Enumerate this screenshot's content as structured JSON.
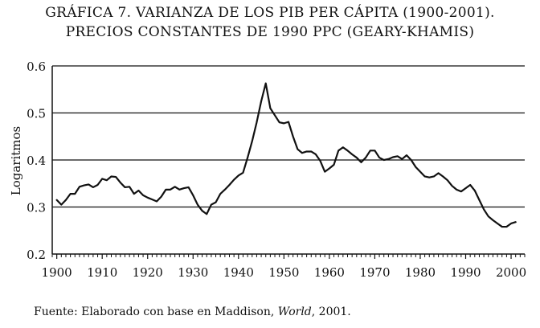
{
  "title_line1": "GRÁFICA 7. VARIANZA DE LOS PIB PER CÁPITA (1900-2001).",
  "title_line2": "PRECIOS CONSTANTES DE 1990 PPC (GEARY-KHAMIS)",
  "source": {
    "prefix": "Fuente: Elaborado con base en Maddison, ",
    "work": "World",
    "suffix": ", 2001."
  },
  "chart_data": {
    "type": "line",
    "title": "",
    "xlabel": "",
    "ylabel": "Logaritmos",
    "xlim": [
      1899,
      2003
    ],
    "ylim": [
      0.2,
      0.6
    ],
    "yticks": [
      "0.2",
      "0.3",
      "0.4",
      "0.5",
      "0.6"
    ],
    "xticks": [
      "1900",
      "1910",
      "1920",
      "1930",
      "1940",
      "1950",
      "1960",
      "1970",
      "1980",
      "1990",
      "2000"
    ],
    "grid": "horizontal",
    "legend": "none",
    "series": [
      {
        "color": "#111111",
        "x": [
          1900,
          1901,
          1902,
          1903,
          1904,
          1905,
          1906,
          1907,
          1908,
          1909,
          1910,
          1911,
          1912,
          1913,
          1914,
          1915,
          1916,
          1917,
          1918,
          1919,
          1920,
          1921,
          1922,
          1923,
          1924,
          1925,
          1926,
          1927,
          1928,
          1929,
          1930,
          1931,
          1932,
          1933,
          1934,
          1935,
          1936,
          1937,
          1938,
          1939,
          1940,
          1941,
          1942,
          1943,
          1944,
          1945,
          1946,
          1947,
          1948,
          1949,
          1950,
          1951,
          1952,
          1953,
          1954,
          1955,
          1956,
          1957,
          1958,
          1959,
          1960,
          1961,
          1962,
          1963,
          1964,
          1965,
          1966,
          1967,
          1968,
          1969,
          1970,
          1971,
          1972,
          1973,
          1974,
          1975,
          1976,
          1977,
          1978,
          1979,
          1980,
          1981,
          1982,
          1983,
          1984,
          1985,
          1986,
          1987,
          1988,
          1989,
          1990,
          1991,
          1992,
          1993,
          1994,
          1995,
          1996,
          1997,
          1998,
          1999,
          2000,
          2001
        ],
        "y": [
          0.315,
          0.305,
          0.315,
          0.328,
          0.328,
          0.343,
          0.346,
          0.348,
          0.342,
          0.347,
          0.36,
          0.357,
          0.365,
          0.364,
          0.352,
          0.342,
          0.343,
          0.328,
          0.335,
          0.325,
          0.32,
          0.316,
          0.312,
          0.322,
          0.337,
          0.337,
          0.343,
          0.337,
          0.34,
          0.342,
          0.325,
          0.305,
          0.292,
          0.285,
          0.305,
          0.31,
          0.328,
          0.337,
          0.347,
          0.358,
          0.367,
          0.373,
          0.405,
          0.44,
          0.48,
          0.525,
          0.563,
          0.51,
          0.495,
          0.48,
          0.478,
          0.481,
          0.45,
          0.423,
          0.415,
          0.418,
          0.418,
          0.412,
          0.398,
          0.375,
          0.382,
          0.39,
          0.42,
          0.427,
          0.42,
          0.412,
          0.405,
          0.395,
          0.405,
          0.42,
          0.42,
          0.405,
          0.4,
          0.402,
          0.406,
          0.408,
          0.402,
          0.41,
          0.4,
          0.385,
          0.375,
          0.365,
          0.363,
          0.365,
          0.372,
          0.365,
          0.357,
          0.345,
          0.337,
          0.333,
          0.34,
          0.347,
          0.335,
          0.315,
          0.295,
          0.28,
          0.272,
          0.265,
          0.258,
          0.258,
          0.265,
          0.268
        ]
      }
    ]
  }
}
